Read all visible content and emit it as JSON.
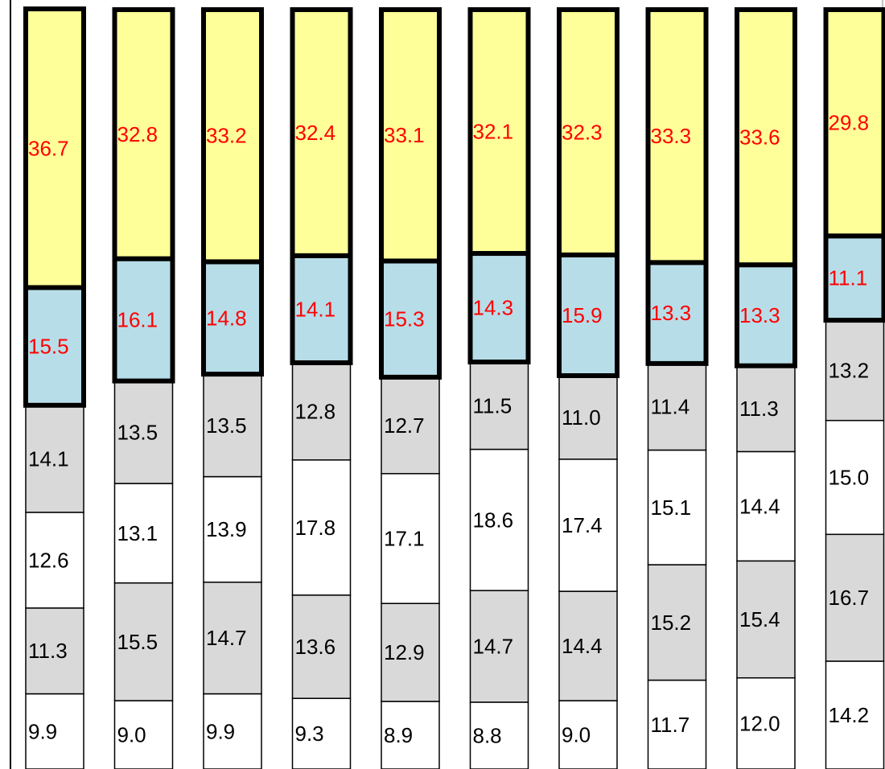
{
  "chart_data": {
    "type": "bar",
    "stacked": true,
    "normalized_to_percent": true,
    "categories": [
      "",
      "",
      "",
      "",
      "",
      "",
      "",
      "",
      "",
      ""
    ],
    "title": "",
    "xlabel": "",
    "ylabel": "",
    "ylim": [
      0,
      100
    ],
    "legend": "none",
    "grid": false,
    "series": [
      {
        "values": [
          9.9,
          9.0,
          9.9,
          9.3,
          8.9,
          8.8,
          9.0,
          11.7,
          12.0,
          14.2
        ],
        "color": "#ffffff",
        "label_color": "#000000",
        "outline": "thin"
      },
      {
        "values": [
          11.3,
          15.5,
          14.7,
          13.6,
          12.9,
          14.7,
          14.4,
          15.2,
          15.4,
          16.7
        ],
        "color": "#d9d9d9",
        "label_color": "#000000",
        "outline": "thin"
      },
      {
        "values": [
          12.6,
          13.1,
          13.9,
          17.8,
          17.1,
          18.6,
          17.4,
          15.1,
          14.4,
          15.0
        ],
        "color": "#ffffff",
        "label_color": "#000000",
        "outline": "thin"
      },
      {
        "values": [
          14.1,
          13.5,
          13.5,
          12.8,
          12.7,
          11.5,
          11.0,
          11.4,
          11.3,
          13.2
        ],
        "color": "#d9d9d9",
        "label_color": "#000000",
        "outline": "thin"
      },
      {
        "values": [
          15.5,
          16.1,
          14.8,
          14.1,
          15.3,
          14.3,
          15.9,
          13.3,
          13.3,
          11.1
        ],
        "color": "#b7dde8",
        "label_color": "#ff0000",
        "outline": "thick"
      },
      {
        "values": [
          36.7,
          32.8,
          33.2,
          32.4,
          33.1,
          32.1,
          32.3,
          33.3,
          33.6,
          29.8
        ],
        "color": "#ffff99",
        "label_color": "#ff0000",
        "outline": "thick"
      }
    ]
  }
}
